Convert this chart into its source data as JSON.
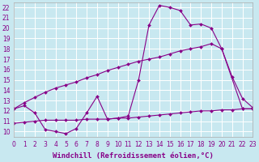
{
  "xlabel": "Windchill (Refroidissement éolien,°C)",
  "background_color": "#c8e8f0",
  "grid_color": "#ffffff",
  "line_color": "#880088",
  "xlim": [
    0,
    23
  ],
  "ylim": [
    9.5,
    22.5
  ],
  "xticks": [
    0,
    1,
    2,
    3,
    4,
    5,
    6,
    7,
    8,
    9,
    10,
    11,
    12,
    13,
    14,
    15,
    16,
    17,
    18,
    19,
    20,
    21,
    22,
    23
  ],
  "yticks": [
    10,
    11,
    12,
    13,
    14,
    15,
    16,
    17,
    18,
    19,
    20,
    21,
    22
  ],
  "line1_x": [
    0,
    1,
    2,
    3,
    4,
    5,
    6,
    7,
    8,
    9,
    10,
    11,
    12,
    13,
    14,
    15,
    16,
    17,
    18,
    19,
    20,
    21,
    22,
    23
  ],
  "line1_y": [
    12.2,
    12.5,
    11.8,
    10.2,
    10.0,
    9.8,
    10.3,
    11.8,
    13.4,
    11.2,
    11.3,
    11.5,
    15.0,
    20.3,
    22.2,
    22.0,
    21.7,
    20.3,
    20.4,
    20.0,
    18.0,
    15.3,
    13.2,
    12.3
  ],
  "line2_x": [
    0,
    1,
    2,
    3,
    4,
    5,
    6,
    7,
    8,
    9,
    10,
    11,
    12,
    13,
    14,
    15,
    16,
    17,
    18,
    19,
    20,
    22,
    23
  ],
  "line2_y": [
    12.2,
    12.8,
    13.3,
    13.8,
    14.2,
    14.5,
    14.8,
    15.2,
    15.5,
    15.9,
    16.2,
    16.5,
    16.8,
    17.0,
    17.2,
    17.5,
    17.8,
    18.0,
    18.2,
    18.5,
    18.0,
    12.2,
    12.2
  ],
  "line3_x": [
    0,
    1,
    2,
    3,
    4,
    5,
    6,
    7,
    8,
    9,
    10,
    11,
    12,
    13,
    14,
    15,
    16,
    17,
    18,
    19,
    20,
    21,
    22,
    23
  ],
  "line3_y": [
    10.8,
    10.9,
    11.0,
    11.1,
    11.1,
    11.1,
    11.1,
    11.2,
    11.2,
    11.2,
    11.3,
    11.3,
    11.4,
    11.5,
    11.6,
    11.7,
    11.8,
    11.9,
    12.0,
    12.0,
    12.1,
    12.1,
    12.2,
    12.2
  ],
  "markersize": 2.0,
  "linewidth": 0.8,
  "tick_fontsize": 5.5,
  "xlabel_fontsize": 6.5
}
